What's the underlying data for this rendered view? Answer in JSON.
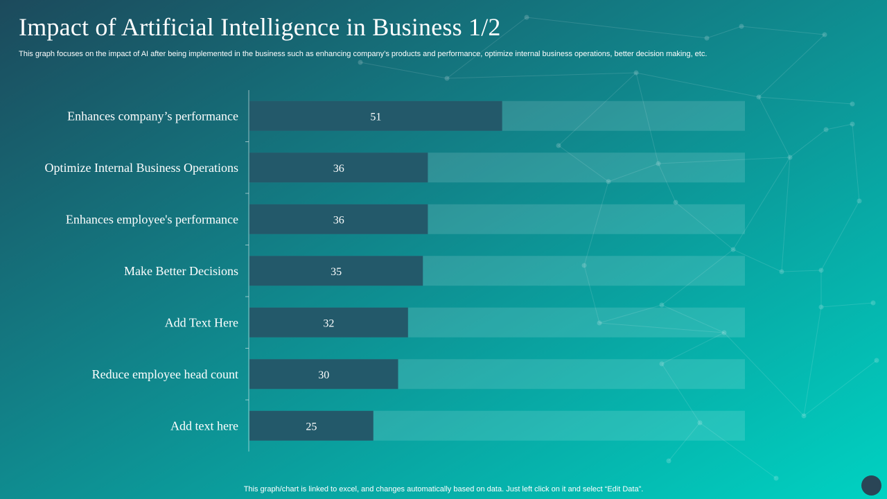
{
  "slide": {
    "title": "Impact of Artificial Intelligence in Business 1/2",
    "subtitle": "This graph focuses on the impact of AI  after being implemented in the business such as enhancing company’s products and performance, optimize internal business operations, better decision making, etc.",
    "footnote": "This graph/chart is linked to excel,  and changes automatically based on data. Just left click on it and select “Edit Data”."
  },
  "colors": {
    "bar_fill": "#23596a",
    "bar_track": "#ffffff"
  },
  "chart_data": {
    "type": "bar",
    "orientation": "horizontal",
    "stacked_with_remainder": true,
    "categories": [
      "Enhances company’s performance",
      "Optimize Internal Business Operations",
      "Enhances employee's performance",
      "Make Better Decisions",
      "Add Text Here",
      "Reduce employee head count",
      "Add text here"
    ],
    "values": [
      51,
      36,
      36,
      35,
      32,
      30,
      25
    ],
    "xlim": [
      0,
      100
    ],
    "title": "",
    "xlabel": "",
    "ylabel": "",
    "grid": false,
    "legend": "none"
  }
}
